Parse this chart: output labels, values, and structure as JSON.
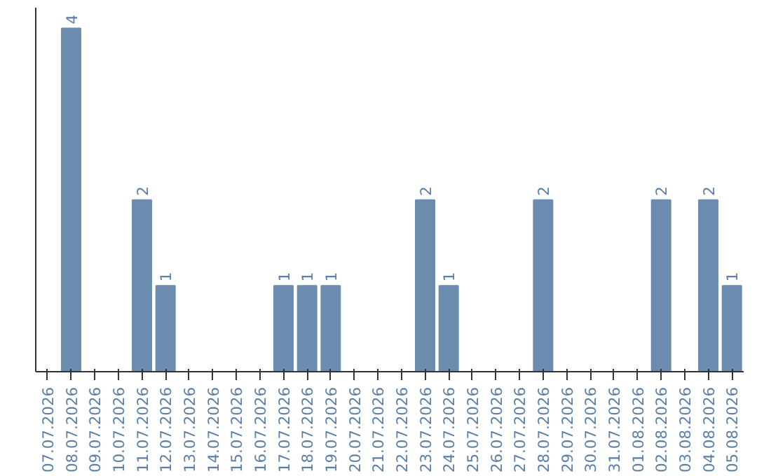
{
  "chart_data": {
    "type": "bar",
    "categories": [
      "07.07.2026",
      "08.07.2026",
      "09.07.2026",
      "10.07.2026",
      "11.07.2026",
      "12.07.2026",
      "13.07.2026",
      "14.07.2026",
      "15.07.2026",
      "16.07.2026",
      "17.07.2026",
      "18.07.2026",
      "19.07.2026",
      "20.07.2026",
      "21.07.2026",
      "22.07.2026",
      "23.07.2026",
      "24.07.2026",
      "25.07.2026",
      "26.07.2026",
      "27.07.2026",
      "28.07.2026",
      "29.07.2026",
      "30.07.2026",
      "31.07.2026",
      "01.08.2026",
      "02.08.2026",
      "03.08.2026",
      "04.08.2026",
      "05.08.2026"
    ],
    "values": [
      0,
      4,
      0,
      0,
      2,
      1,
      0,
      0,
      0,
      0,
      1,
      1,
      1,
      0,
      0,
      0,
      2,
      1,
      0,
      0,
      0,
      2,
      0,
      0,
      0,
      0,
      2,
      0,
      2,
      1
    ],
    "value_labels": [
      null,
      "4",
      null,
      null,
      "2",
      "1",
      null,
      null,
      null,
      null,
      "1",
      "1",
      "1",
      null,
      null,
      null,
      "2",
      "1",
      null,
      null,
      null,
      "2",
      null,
      null,
      null,
      null,
      "2",
      null,
      "2",
      "1"
    ],
    "color": "#6b8cae",
    "tick_labels": "x",
    "grid": false
  }
}
